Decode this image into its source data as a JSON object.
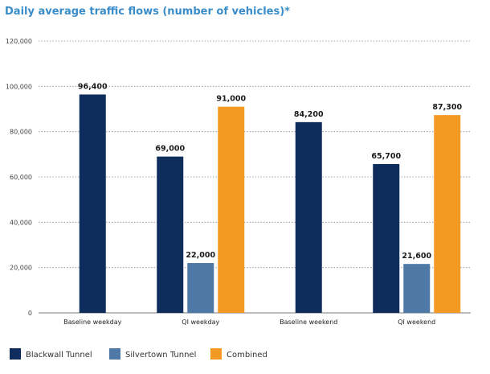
{
  "chart_data": {
    "type": "bar",
    "title": "Daily average traffic flows (number of vehicles)*",
    "xlabel": "",
    "ylabel": "",
    "ylim": [
      0,
      120000
    ],
    "yticks": [
      0,
      20000,
      40000,
      60000,
      80000,
      100000,
      120000
    ],
    "ytick_labels": [
      "0",
      "20,000",
      "40,000",
      "60,000",
      "80,000",
      "100,000",
      "120,000"
    ],
    "grid": true,
    "legend_position": "bottom-left",
    "categories": [
      "Baseline weekday",
      "QI weekday",
      "Baseline weekend",
      "QI weekend"
    ],
    "series": [
      {
        "name": "Blackwall Tunnel",
        "color": "#0f2d5c",
        "values": [
          96400,
          69000,
          84200,
          65700
        ],
        "labels": [
          "96,400",
          "69,000",
          "84,200",
          "65,700"
        ]
      },
      {
        "name": "Silvertown Tunnel",
        "color": "#4e79a7",
        "values": [
          null,
          22000,
          null,
          21600
        ],
        "labels": [
          "",
          "22,000",
          "",
          "21,600"
        ]
      },
      {
        "name": "Combined",
        "color": "#f39a24",
        "values": [
          null,
          91000,
          null,
          87300
        ],
        "labels": [
          "",
          "91,000",
          "",
          "87,300"
        ]
      }
    ]
  }
}
